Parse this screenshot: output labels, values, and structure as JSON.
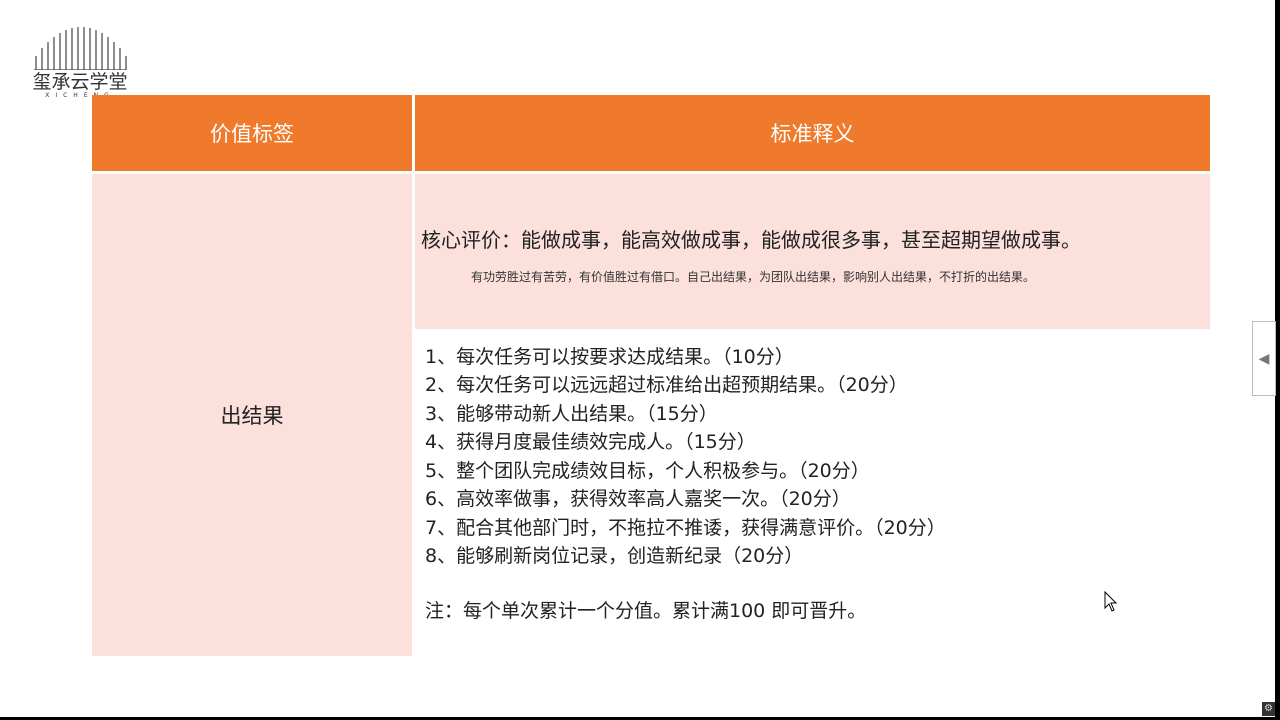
{
  "logo": {
    "name": "玺承云学堂",
    "sub": "XICHENG"
  },
  "table": {
    "headers": [
      "价值标签",
      "标准释义"
    ],
    "label": "出结果",
    "core_main": "核心评价：能做成事，能高效做成事，能做成很多事，甚至超期望做成事。",
    "core_sub": "有功劳胜过有苦劳，有价值胜过有借口。自己出结果，为团队出结果，影响别人出结果，不打折的出结果。",
    "items": [
      "1、每次任务可以按要求达成结果。（10分）",
      "2、每次任务可以远远超过标准给出超预期结果。（20分）",
      "3、能够带动新人出结果。（15分）",
      "4、获得月度最佳绩效完成人。（15分）",
      "5、整个团队完成绩效目标，个人积极参与。（20分）",
      "6、高效率做事，获得效率高人嘉奖一次。（20分）",
      "7、配合其他部门时，不拖拉不推诿，获得满意评价。（20分）",
      "8、能够刷新岗位记录，创造新纪录（20分）"
    ],
    "note": "注：每个单次累计一个分值。累计满100 即可晋升。"
  },
  "colors": {
    "header": "#f07a2c",
    "cell": "#fbe0dc"
  },
  "icons": {
    "side_tab": "triangle-left-icon",
    "corner": "gear-icon",
    "cursor": "mouse-pointer-icon"
  }
}
